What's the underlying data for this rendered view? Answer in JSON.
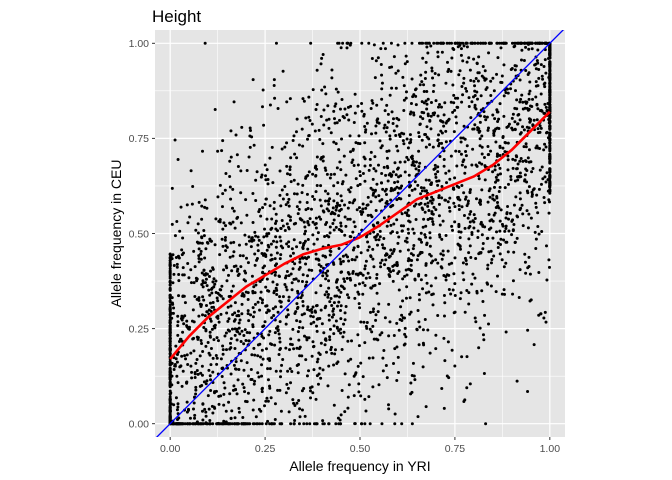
{
  "chart_data": {
    "type": "scatter",
    "title": "Height",
    "xlabel": "Allele frequency in YRI",
    "ylabel": "Allele frequency in CEU",
    "xlim": [
      -0.04,
      1.04
    ],
    "ylim": [
      -0.035,
      1.035
    ],
    "x_ticks": [
      0.0,
      0.25,
      0.5,
      0.75,
      1.0
    ],
    "y_ticks": [
      0.0,
      0.25,
      0.5,
      0.75,
      1.0
    ],
    "x_tick_labels": [
      "0.00",
      "0.25",
      "0.50",
      "0.75",
      "1.00"
    ],
    "y_tick_labels": [
      "0.00",
      "0.25",
      "0.50",
      "0.75",
      "1.00"
    ],
    "grid": true,
    "panel_background": "#e5e5e5",
    "grid_color": "#ffffff",
    "point_color": "#000000",
    "approx_point_count": 3500,
    "reference_line": {
      "type": "identity",
      "slope": 1,
      "intercept": 0,
      "color": "#0000ff"
    },
    "smooth_line": {
      "color": "#ff0000",
      "x": [
        0.0,
        0.05,
        0.1,
        0.15,
        0.2,
        0.25,
        0.3,
        0.35,
        0.4,
        0.45,
        0.5,
        0.55,
        0.6,
        0.65,
        0.7,
        0.75,
        0.8,
        0.85,
        0.9,
        0.95,
        1.0
      ],
      "y": [
        0.17,
        0.23,
        0.28,
        0.32,
        0.36,
        0.39,
        0.42,
        0.445,
        0.46,
        0.47,
        0.49,
        0.52,
        0.555,
        0.59,
        0.61,
        0.63,
        0.65,
        0.68,
        0.72,
        0.77,
        0.82
      ]
    }
  }
}
